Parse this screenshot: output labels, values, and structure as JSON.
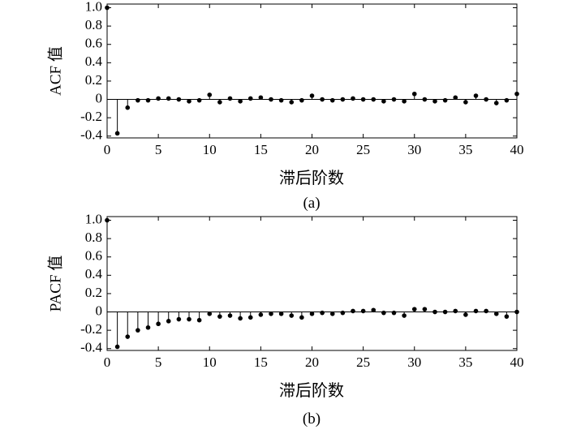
{
  "chart_data": [
    {
      "type": "stem",
      "xlabel": "滞后阶数",
      "ylabel": "ACF 值",
      "caption": "(a)",
      "xlim": [
        0,
        40
      ],
      "ylim": [
        -0.42,
        1.04
      ],
      "xticks": [
        0,
        5,
        10,
        15,
        20,
        25,
        30,
        35,
        40
      ],
      "xtick_labels": [
        "0",
        "5",
        "10",
        "15",
        "20",
        "25",
        "30",
        "35",
        "40"
      ],
      "yticks": [
        -0.4,
        -0.2,
        0,
        0.2,
        0.4,
        0.6,
        0.8,
        1.0
      ],
      "ytick_labels": [
        "-0.4",
        "-0.2",
        "0",
        "0.2",
        "0.4",
        "0.6",
        "0.8",
        "1.0"
      ],
      "x": [
        0,
        1,
        2,
        3,
        4,
        5,
        6,
        7,
        8,
        9,
        10,
        11,
        12,
        13,
        14,
        15,
        16,
        17,
        18,
        19,
        20,
        21,
        22,
        23,
        24,
        25,
        26,
        27,
        28,
        29,
        30,
        31,
        32,
        33,
        34,
        35,
        36,
        37,
        38,
        39,
        40
      ],
      "values": [
        1.0,
        -0.37,
        -0.09,
        -0.01,
        -0.01,
        0.01,
        0.01,
        0.0,
        -0.02,
        -0.01,
        0.05,
        -0.03,
        0.01,
        -0.02,
        0.01,
        0.02,
        0.0,
        -0.01,
        -0.03,
        -0.01,
        0.04,
        0.0,
        -0.01,
        0.0,
        0.01,
        0.0,
        0.0,
        -0.02,
        0.0,
        -0.02,
        0.06,
        0.0,
        -0.02,
        -0.01,
        0.02,
        -0.03,
        0.04,
        0.0,
        -0.04,
        -0.01,
        0.06
      ]
    },
    {
      "type": "stem",
      "xlabel": "滞后阶数",
      "ylabel": "PACF 值",
      "caption": "(b)",
      "xlim": [
        0,
        40
      ],
      "ylim": [
        -0.42,
        1.04
      ],
      "xticks": [
        0,
        5,
        10,
        15,
        20,
        25,
        30,
        35,
        40
      ],
      "xtick_labels": [
        "0",
        "5",
        "10",
        "15",
        "20",
        "25",
        "30",
        "35",
        "40"
      ],
      "yticks": [
        -0.4,
        -0.2,
        0,
        0.2,
        0.4,
        0.6,
        0.8,
        1.0
      ],
      "ytick_labels": [
        "-0.4",
        "-0.2",
        "0",
        "0.2",
        "0.4",
        "0.6",
        "0.8",
        "1.0"
      ],
      "x": [
        0,
        1,
        2,
        3,
        4,
        5,
        6,
        7,
        8,
        9,
        10,
        11,
        12,
        13,
        14,
        15,
        16,
        17,
        18,
        19,
        20,
        21,
        22,
        23,
        24,
        25,
        26,
        27,
        28,
        29,
        30,
        31,
        32,
        33,
        34,
        35,
        36,
        37,
        38,
        39,
        40
      ],
      "values": [
        1.0,
        -0.38,
        -0.27,
        -0.2,
        -0.17,
        -0.13,
        -0.1,
        -0.08,
        -0.08,
        -0.09,
        -0.02,
        -0.05,
        -0.04,
        -0.07,
        -0.06,
        -0.03,
        -0.02,
        -0.02,
        -0.04,
        -0.06,
        -0.02,
        -0.01,
        -0.02,
        -0.01,
        0.01,
        0.01,
        0.02,
        -0.01,
        -0.01,
        -0.04,
        0.03,
        0.03,
        0.0,
        0.0,
        0.01,
        -0.03,
        0.01,
        0.01,
        -0.02,
        -0.05,
        0.0
      ]
    }
  ]
}
